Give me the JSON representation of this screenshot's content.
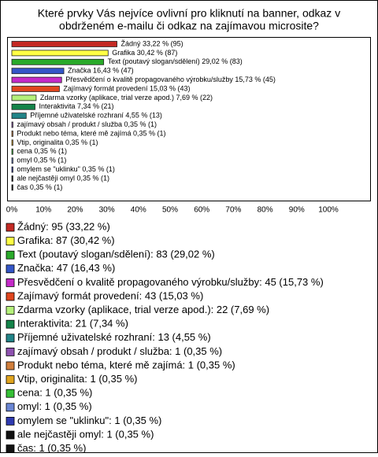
{
  "chart_data": {
    "type": "hbar",
    "title": [
      "Které prvky Vás nejvíce ovlivní pro kliknutí na banner, odkaz v",
      "obdrženém e-mailu či odkaz na zajímavou microsite?"
    ],
    "categories": [
      "Žádný",
      "Grafika",
      "Text (poutavý slogan/sdělení)",
      "Značka",
      "Přesvědčení o kvalitě propagovaného výrobku/služby",
      "Zajímavý formát provedení",
      "Zdarma vzorky (aplikace, trial verze apod.)",
      "Interaktivita",
      "Příjemné uživatelské rozhraní",
      "zajímavý obsah / produkt / služba",
      "Produkt nebo téma, které mě zajímá",
      "Vtip, originalita",
      "cena",
      "omyl",
      "omylem se \"uklinku\"",
      "ale nejčastěji omyl",
      "čas"
    ],
    "values": [
      33.22,
      30.42,
      29.02,
      16.43,
      15.73,
      15.03,
      7.69,
      7.34,
      4.55,
      0.35,
      0.35,
      0.35,
      0.35,
      0.35,
      0.35,
      0.35,
      0.35
    ],
    "value_labels": [
      "Žádný 33,22 % (95)",
      "Grafika 30,42 % (87)",
      "Text (poutavý slogan/sdělení) 29,02 % (83)",
      "Značka 16,43 % (47)",
      "Přesvědčení o kvalitě propagovaného výrobku/služby 15,73 % (45)",
      "Zajímavý formát provedení 15,03 % (43)",
      "Zdarma vzorky (aplikace, trial verze apod.) 7,69 % (22)",
      "Interaktivita 7,34 % (21)",
      "Příjemné uživatelské rozhraní 4,55 % (13)",
      "zajímavý obsah / produkt / služba 0,35 % (1)",
      "Produkt nebo téma, které mě zajímá 0,35 % (1)",
      "Vtip, originalita 0,35 % (1)",
      "cena 0,35 % (1)",
      "omyl 0,35 % (1)",
      "omylem se \"uklinku\" 0,35 % (1)",
      "ale nejčastěji omyl 0,35 % (1)",
      "čas 0,35 % (1)"
    ],
    "legend": [
      "Žádný: 95 (33,22 %)",
      "Grafika: 87 (30,42 %)",
      "Text (poutavý slogan/sdělení): 83 (29,02 %)",
      "Značka: 47 (16,43 %)",
      "Přesvědčení o kvalitě propagovaného výrobku/služby: 45 (15,73 %)",
      "Zajímavý formát provedení: 43 (15,03 %)",
      "Zdarma vzorky (aplikace, trial verze apod.): 22 (7,69 %)",
      "Interaktivita: 21 (7,34 %)",
      "Příjemné uživatelské rozhraní: 13 (4,55 %)",
      "zajímavý obsah / produkt / služba: 1 (0,35 %)",
      "Produkt nebo téma, které mě zajímá: 1 (0,35 %)",
      "Vtip, originalita: 1 (0,35 %)",
      "cena: 1 (0,35 %)",
      "omyl: 1 (0,35 %)",
      "omylem se \"uklinku\": 1 (0,35 %)",
      "ale nejčastěji omyl: 1 (0,35 %)",
      "čas: 1 (0,35 %)"
    ],
    "colors": [
      "#c42a24",
      "#ffff44",
      "#2aaa2a",
      "#3456c8",
      "#c42ac8",
      "#e0461e",
      "#b4f07a",
      "#14844a",
      "#228488",
      "#8e52b0",
      "#d07e3c",
      "#e0a41e",
      "#36c036",
      "#6a86d4",
      "#2e3ab0",
      "#111111",
      "#111111"
    ],
    "xlim": [
      0,
      100
    ],
    "xticks": [
      {
        "value": 0,
        "label": "0%"
      },
      {
        "value": 10,
        "label": "10%"
      },
      {
        "value": 20,
        "label": "20%"
      },
      {
        "value": 30,
        "label": "30%"
      },
      {
        "value": 40,
        "label": "40%"
      },
      {
        "value": 50,
        "label": "50%"
      },
      {
        "value": 60,
        "label": "60%"
      },
      {
        "value": 70,
        "label": "70%"
      },
      {
        "value": 80,
        "label": "80%"
      },
      {
        "value": 90,
        "label": "90%"
      },
      {
        "value": 100,
        "label": "100%"
      }
    ],
    "grid": false
  }
}
